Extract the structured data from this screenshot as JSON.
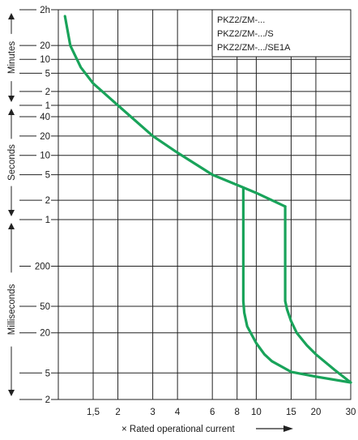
{
  "chart_data": {
    "type": "line",
    "x_scale": "log",
    "y_scale": "log",
    "xlabel": "× Rated operational current",
    "x_range": [
      1,
      30
    ],
    "y_range_seconds": [
      0.002,
      7200
    ],
    "grid": true,
    "x_ticks": [
      {
        "value": 1.5,
        "label": "1,5"
      },
      {
        "value": 2,
        "label": "2"
      },
      {
        "value": 3,
        "label": "3"
      },
      {
        "value": 4,
        "label": "4"
      },
      {
        "value": 6,
        "label": "6"
      },
      {
        "value": 8,
        "label": "8"
      },
      {
        "value": 10,
        "label": "10"
      },
      {
        "value": 15,
        "label": "15"
      },
      {
        "value": 20,
        "label": "20"
      },
      {
        "value": 30,
        "label": "30"
      }
    ],
    "y_ticks": [
      {
        "seconds": 7200,
        "label": "2h"
      },
      {
        "seconds": 1200,
        "label": "20"
      },
      {
        "seconds": 600,
        "label": "10"
      },
      {
        "seconds": 300,
        "label": "5"
      },
      {
        "seconds": 120,
        "label": "2"
      },
      {
        "seconds": 60,
        "label": "1"
      },
      {
        "seconds": 40,
        "label": "40"
      },
      {
        "seconds": 20,
        "label": "20"
      },
      {
        "seconds": 10,
        "label": "10"
      },
      {
        "seconds": 5,
        "label": "5"
      },
      {
        "seconds": 2,
        "label": "2"
      },
      {
        "seconds": 1,
        "label": "1"
      },
      {
        "seconds": 0.2,
        "label": "200"
      },
      {
        "seconds": 0.05,
        "label": "50"
      },
      {
        "seconds": 0.02,
        "label": "20"
      },
      {
        "seconds": 0.005,
        "label": "5"
      },
      {
        "seconds": 0.002,
        "label": "2"
      }
    ],
    "regions": [
      {
        "label": "Minutes",
        "from_seconds": 7200,
        "to_seconds": 60
      },
      {
        "label": "Seconds",
        "from_seconds": 60,
        "to_seconds": 1
      },
      {
        "label": "Milliseconds",
        "from_seconds": 1,
        "to_seconds": 0.002
      }
    ],
    "legend": [
      "PKZ2/ZM-...",
      "PKZ2/ZM-.../S",
      "PKZ2/ZM-.../SE1A"
    ],
    "legend_position": "top-right",
    "line_color": "#19a35a",
    "series": [
      {
        "points": [
          [
            1.08,
            5200
          ],
          [
            1.15,
            1200
          ],
          [
            1.3,
            400
          ],
          [
            1.5,
            180
          ],
          [
            2.0,
            60
          ],
          [
            3.0,
            20
          ],
          [
            4.0,
            11
          ],
          [
            6.0,
            5.0
          ],
          [
            8.5,
            3.2
          ],
          [
            10.0,
            2.6
          ],
          [
            14.0,
            1.6
          ]
        ]
      },
      {
        "points": [
          [
            8.6,
            3.0
          ],
          [
            8.6,
            0.06
          ],
          [
            8.7,
            0.04
          ],
          [
            9.0,
            0.025
          ],
          [
            10.0,
            0.014
          ],
          [
            11.0,
            0.0095
          ],
          [
            12.0,
            0.0075
          ],
          [
            15.0,
            0.0052
          ],
          [
            20.0,
            0.0044
          ],
          [
            30.0,
            0.0036
          ]
        ]
      },
      {
        "points": [
          [
            14.0,
            1.6
          ],
          [
            14.0,
            0.06
          ],
          [
            14.3,
            0.045
          ],
          [
            15.0,
            0.03
          ],
          [
            16.0,
            0.02
          ],
          [
            18.0,
            0.013
          ],
          [
            20.0,
            0.0095
          ],
          [
            25.0,
            0.0055
          ],
          [
            30.0,
            0.0036
          ]
        ]
      }
    ]
  }
}
